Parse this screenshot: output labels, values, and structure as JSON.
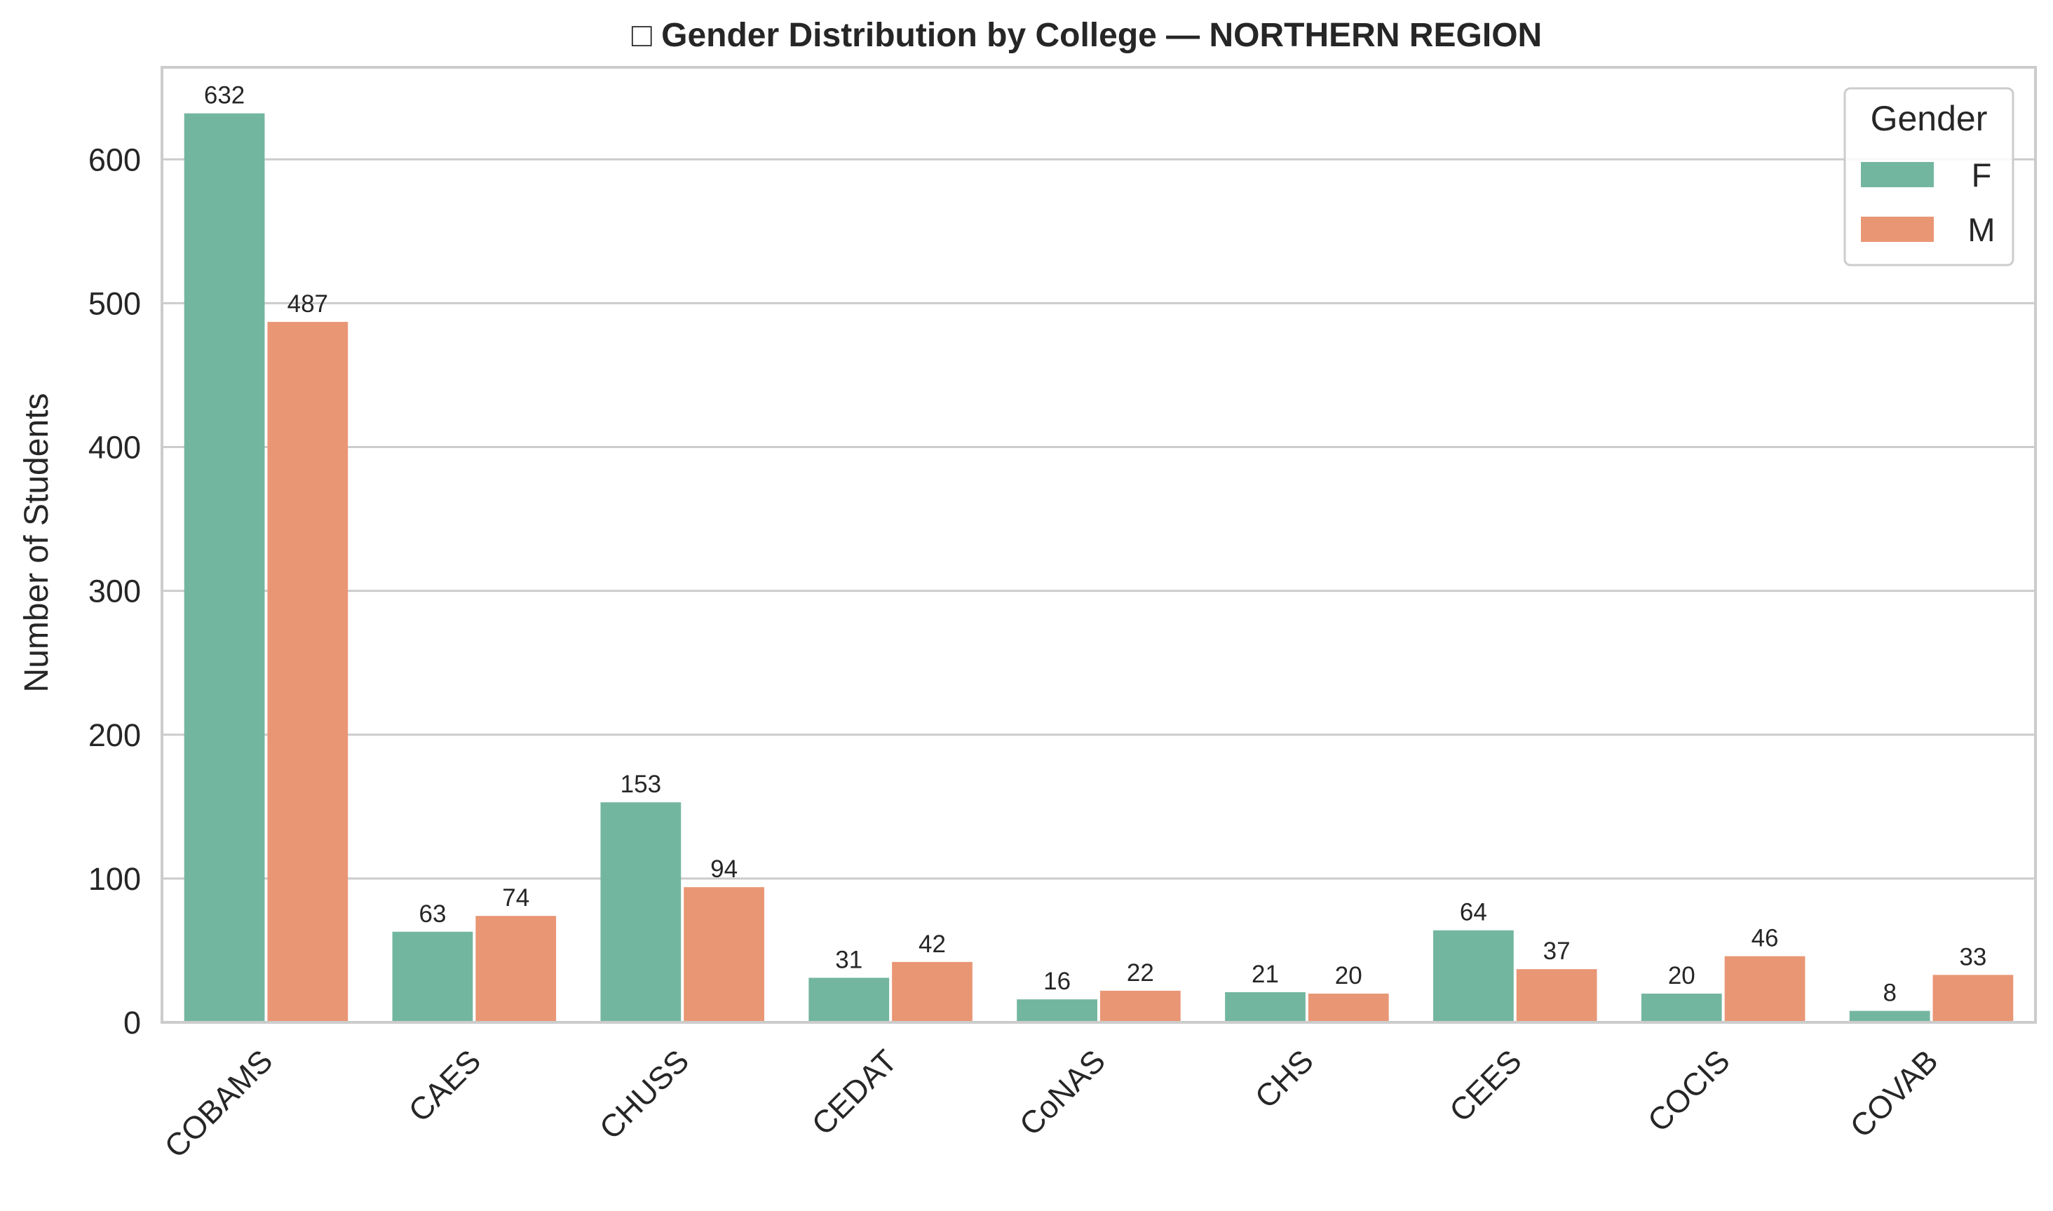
{
  "chart_data": {
    "type": "bar",
    "title": "□ Gender Distribution by College — NORTHERN REGION",
    "xlabel": "",
    "ylabel": "Number of Students",
    "categories": [
      "COBAMS",
      "CAES",
      "CHUSS",
      "CEDAT",
      "CoNAS",
      "CHS",
      "CEES",
      "COCIS",
      "COVAB"
    ],
    "series": [
      {
        "name": "F",
        "color": "#73b6a0",
        "values": [
          632,
          63,
          153,
          31,
          16,
          21,
          64,
          20,
          8
        ]
      },
      {
        "name": "M",
        "color": "#e99675",
        "values": [
          487,
          74,
          94,
          42,
          22,
          20,
          37,
          46,
          33
        ]
      }
    ],
    "ylim": [
      0,
      664
    ],
    "yticks": [
      0,
      100,
      200,
      300,
      400,
      500,
      600
    ],
    "grid": true,
    "legend": {
      "title": "Gender",
      "placement": "top-right"
    }
  }
}
